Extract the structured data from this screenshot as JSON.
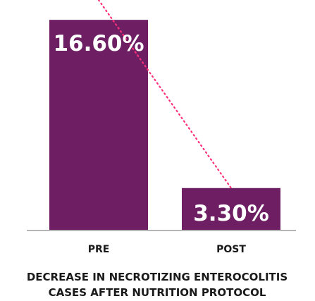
{
  "chart_data": {
    "type": "bar",
    "categories": [
      "PRE",
      "POST"
    ],
    "values": [
      16.6,
      3.3
    ],
    "value_labels": [
      "16.60%",
      "3.30%"
    ],
    "ylim": [
      0,
      17.5
    ],
    "grid": false,
    "legend": "none",
    "trend_line": "dotted",
    "caption_lines": [
      "DECREASE IN NECROTIZING ENTEROCOLITIS",
      "CASES AFTER NUTRITION PROTOCOL"
    ],
    "colors": {
      "bar": "#6e1f63",
      "trend": "#ff2f7a",
      "baseline": "#b5b5b5",
      "text": "#1a1a1a",
      "value_text": "#ffffff"
    }
  }
}
